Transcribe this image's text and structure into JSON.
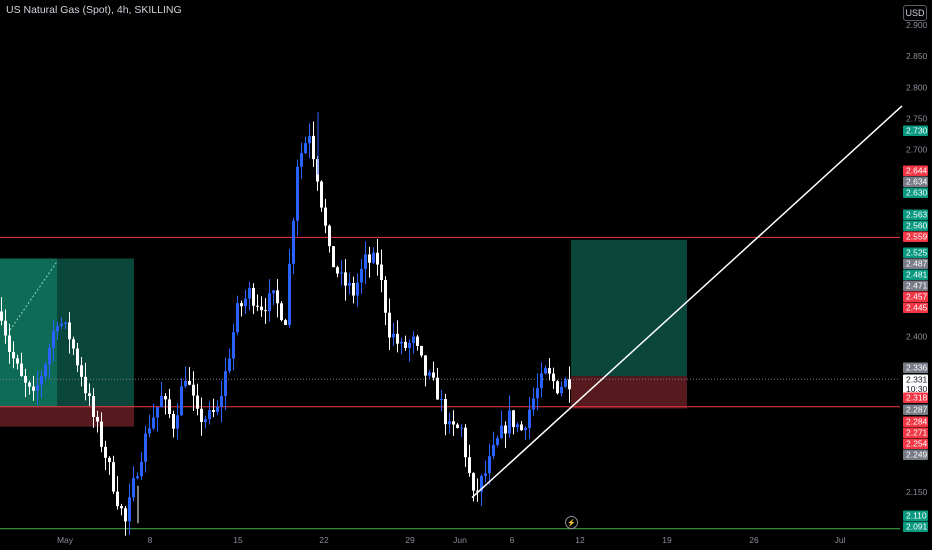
{
  "header": {
    "symbol_title": "US Natural Gas (Spot), 4h, SKILLING",
    "currency": "USD"
  },
  "price_axis": {
    "ticks": [
      "2.900",
      "2.850",
      "2.800",
      "2.750",
      "2.700",
      "2.400",
      "2.150"
    ]
  },
  "price_badges": [
    {
      "label": "2.730",
      "color": "#089981"
    },
    {
      "label": "2.644",
      "color": "#f23645"
    },
    {
      "label": "2.634",
      "color": "#787b86"
    },
    {
      "label": "2.630",
      "color": "#089981"
    },
    {
      "label": "2.563",
      "color": "#089981"
    },
    {
      "label": "2.560",
      "color": "#089981"
    },
    {
      "label": "2.559",
      "color": "#f23645"
    },
    {
      "label": "2.525",
      "color": "#089981"
    },
    {
      "label": "2.487",
      "color": "#787b86"
    },
    {
      "label": "2.481",
      "color": "#089981"
    },
    {
      "label": "2.471",
      "color": "#787b86"
    },
    {
      "label": "2.457",
      "color": "#f23645"
    },
    {
      "label": "2.445",
      "color": "#f23645"
    },
    {
      "label": "2.336",
      "color": "#787b86"
    },
    {
      "label": "2.331",
      "color": "#ffffff",
      "sub": "10:30"
    },
    {
      "label": "2.318",
      "color": "#f23645"
    },
    {
      "label": "2.287",
      "color": "#787b86"
    },
    {
      "label": "2.284",
      "color": "#f23645"
    },
    {
      "label": "2.271",
      "color": "#f23645"
    },
    {
      "label": "2.254",
      "color": "#f23645"
    },
    {
      "label": "2.249",
      "color": "#787b86"
    },
    {
      "label": "2.110",
      "color": "#089981"
    },
    {
      "label": "2.091",
      "color": "#089981"
    }
  ],
  "time_axis": {
    "labels": [
      "May",
      "8",
      "15",
      "22",
      "29",
      "Jun",
      "6",
      "12",
      "19",
      "26",
      "Jul"
    ]
  },
  "chart_data": {
    "type": "candlestick",
    "symbol": "US Natural Gas (Spot)",
    "interval": "4h",
    "ylim": [
      2.09,
      2.92
    ],
    "horizontal_lines": [
      {
        "price": 2.559,
        "color": "#f23645"
      },
      {
        "price": 2.287,
        "color": "#f23645"
      },
      {
        "price": 2.331,
        "color": "#787b86",
        "style": "dotted"
      },
      {
        "price": 2.091,
        "color": "#4caf50"
      }
    ],
    "anchor_path": [
      [
        0,
        2.44
      ],
      [
        2,
        2.38
      ],
      [
        5,
        2.33
      ],
      [
        8,
        2.3
      ],
      [
        11,
        2.36
      ],
      [
        14,
        2.43
      ],
      [
        17,
        2.4
      ],
      [
        20,
        2.34
      ],
      [
        23,
        2.27
      ],
      [
        26,
        2.21
      ],
      [
        29,
        2.14
      ],
      [
        31,
        2.1
      ],
      [
        34,
        2.19
      ],
      [
        37,
        2.26
      ],
      [
        40,
        2.3
      ],
      [
        43,
        2.26
      ],
      [
        46,
        2.34
      ],
      [
        49,
        2.27
      ],
      [
        52,
        2.27
      ],
      [
        54,
        2.28
      ],
      [
        56,
        2.34
      ],
      [
        59,
        2.44
      ],
      [
        62,
        2.47
      ],
      [
        65,
        2.45
      ],
      [
        68,
        2.46
      ],
      [
        71,
        2.43
      ],
      [
        74,
        2.68
      ],
      [
        77,
        2.73
      ],
      [
        79,
        2.66
      ],
      [
        82,
        2.53
      ],
      [
        85,
        2.49
      ],
      [
        88,
        2.47
      ],
      [
        91,
        2.52
      ],
      [
        94,
        2.52
      ],
      [
        97,
        2.41
      ],
      [
        100,
        2.38
      ],
      [
        103,
        2.39
      ],
      [
        106,
        2.34
      ],
      [
        109,
        2.31
      ],
      [
        112,
        2.25
      ],
      [
        115,
        2.25
      ],
      [
        118,
        2.14
      ],
      [
        121,
        2.18
      ],
      [
        124,
        2.23
      ],
      [
        127,
        2.27
      ],
      [
        130,
        2.25
      ],
      [
        133,
        2.3
      ],
      [
        136,
        2.34
      ],
      [
        139,
        2.32
      ],
      [
        142,
        2.33
      ]
    ],
    "trendline": {
      "from": [
        "Jun 2",
        2.141
      ],
      "to": [
        "Jul 4",
        2.77
      ]
    },
    "positions": [
      {
        "type": "long",
        "entry": 2.336,
        "target": 2.555,
        "stop": 2.284
      },
      {
        "type": "long",
        "entry": 2.287,
        "target": 2.525,
        "stop": 2.255
      }
    ]
  }
}
